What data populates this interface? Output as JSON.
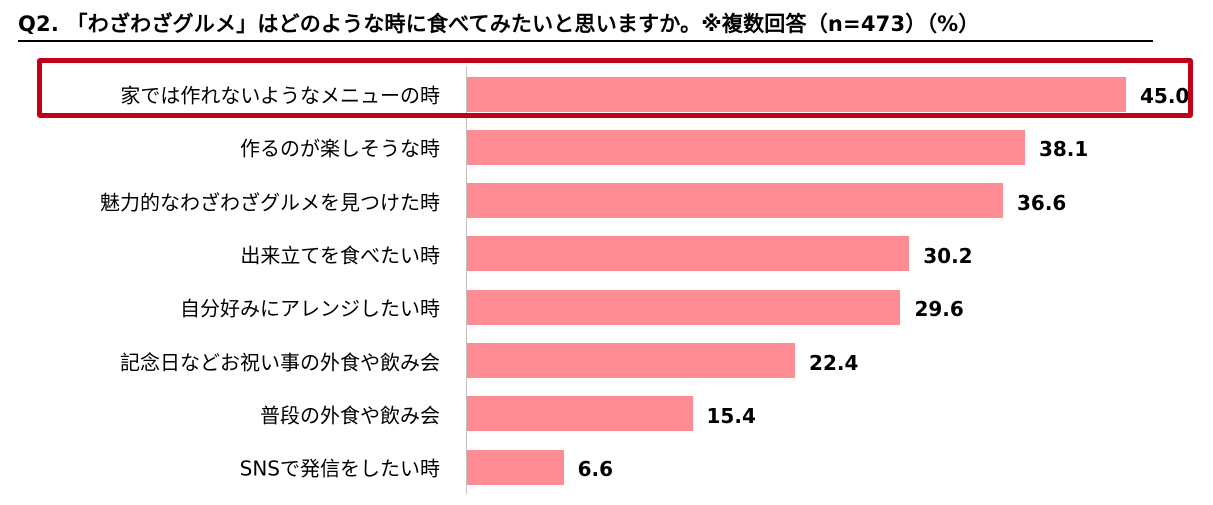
{
  "title": "Q2. 「わざわざグルメ」はどのような時に食べてみたいと思いますか。※複数回答（n=473）（%）",
  "colors": {
    "bar": "#ff8b94",
    "highlight": "#c00018",
    "axis": "#bfbfbf"
  },
  "chart_data": {
    "type": "bar",
    "orientation": "horizontal",
    "categories": [
      "家では作れないようなメニューの時",
      "作るのが楽しそうな時",
      "魅力的なわざわざグルメを見つけた時",
      "出来立てを食べたい時",
      "自分好みにアレンジしたい時",
      "記念日などお祝い事の外食や飲み会",
      "普段の外食や飲み会",
      "SNSで発信をしたい時"
    ],
    "values": [
      45.0,
      38.1,
      36.6,
      30.2,
      29.6,
      22.4,
      15.4,
      6.6
    ],
    "value_labels": [
      "45.0",
      "38.1",
      "36.6",
      "30.2",
      "29.6",
      "22.4",
      "15.4",
      "6.6"
    ],
    "highlighted_category": "家では作れないようなメニューの時",
    "xlim": [
      0,
      45.0
    ],
    "grid": false,
    "legend": "none"
  }
}
